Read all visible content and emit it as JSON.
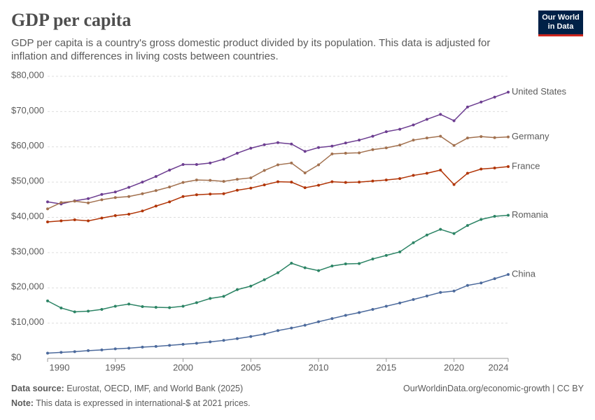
{
  "chart_data": {
    "type": "line",
    "title": "GDP per capita",
    "subtitle": "GDP per capita is a country's gross domestic product divided by its population. This data is adjusted for inflation and differences in living costs between countries.",
    "logo": [
      "Our World",
      "in Data"
    ],
    "source_label": "Data source:",
    "source": "Eurostat, OECD, IMF, and World Bank (2025)",
    "url": "OurWorldinData.org/economic-growth | CC BY",
    "note_label": "Note:",
    "note": "This data is expressed in international-$ at 2021 prices.",
    "x": [
      1990,
      1991,
      1992,
      1993,
      1994,
      1995,
      1996,
      1997,
      1998,
      1999,
      2000,
      2001,
      2002,
      2003,
      2004,
      2005,
      2006,
      2007,
      2008,
      2009,
      2010,
      2011,
      2012,
      2013,
      2014,
      2015,
      2016,
      2017,
      2018,
      2019,
      2020,
      2021,
      2022,
      2023,
      2024
    ],
    "xlim": [
      1990,
      2024
    ],
    "xticks": [
      1990,
      1995,
      2000,
      2005,
      2010,
      2015,
      2020,
      2024
    ],
    "ylim": [
      0,
      80000
    ],
    "yticks": [
      {
        "value": 0,
        "label": "$0"
      },
      {
        "value": 10000,
        "label": "$10,000"
      },
      {
        "value": 20000,
        "label": "$20,000"
      },
      {
        "value": 30000,
        "label": "$30,000"
      },
      {
        "value": 40000,
        "label": "$40,000"
      },
      {
        "value": 50000,
        "label": "$50,000"
      },
      {
        "value": 60000,
        "label": "$60,000"
      },
      {
        "value": 70000,
        "label": "$70,000"
      },
      {
        "value": 80000,
        "label": "$80,000"
      }
    ],
    "grid": true,
    "series": [
      {
        "name": "United States",
        "color": "#6d3e91",
        "values": [
          44400,
          43800,
          44700,
          45300,
          46500,
          47200,
          48500,
          50000,
          51600,
          53400,
          55000,
          55000,
          55400,
          56500,
          58200,
          59600,
          60600,
          61200,
          60800,
          58700,
          59800,
          60200,
          61100,
          61900,
          63000,
          64300,
          65000,
          66200,
          67800,
          69200,
          67400,
          71300,
          72700,
          74100,
          75500
        ]
      },
      {
        "name": "Germany",
        "color": "#a2714f",
        "values": [
          42400,
          44200,
          44600,
          44100,
          45000,
          45600,
          45900,
          46700,
          47600,
          48600,
          49900,
          50600,
          50500,
          50200,
          50800,
          51200,
          53300,
          54900,
          55400,
          52600,
          54900,
          58000,
          58200,
          58300,
          59200,
          59700,
          60500,
          61900,
          62500,
          63000,
          60400,
          62500,
          62900,
          62600,
          62800
        ]
      },
      {
        "name": "France",
        "color": "#b13507",
        "values": [
          38700,
          39000,
          39300,
          39000,
          39800,
          40500,
          40900,
          41800,
          43200,
          44400,
          45900,
          46400,
          46600,
          46700,
          47700,
          48300,
          49200,
          50100,
          50000,
          48400,
          49100,
          50100,
          49900,
          50000,
          50300,
          50600,
          51000,
          51900,
          52500,
          53400,
          49300,
          52500,
          53700,
          54000,
          54400
        ]
      },
      {
        "name": "Romania",
        "color": "#2c8465",
        "values": [
          16300,
          14300,
          13200,
          13400,
          13900,
          14800,
          15400,
          14700,
          14500,
          14400,
          14800,
          15800,
          17000,
          17600,
          19500,
          20500,
          22300,
          24300,
          27000,
          25700,
          24900,
          26200,
          26800,
          26900,
          28200,
          29200,
          30200,
          32800,
          35000,
          36600,
          35400,
          37700,
          39400,
          40300,
          40600
        ]
      },
      {
        "name": "China",
        "color": "#4c6a9c",
        "values": [
          1500,
          1700,
          1900,
          2200,
          2400,
          2700,
          2900,
          3200,
          3400,
          3700,
          4000,
          4300,
          4700,
          5100,
          5600,
          6200,
          6900,
          7900,
          8600,
          9400,
          10400,
          11300,
          12200,
          13000,
          13900,
          14800,
          15700,
          16700,
          17700,
          18700,
          19100,
          20700,
          21400,
          22600,
          23800
        ]
      }
    ]
  }
}
